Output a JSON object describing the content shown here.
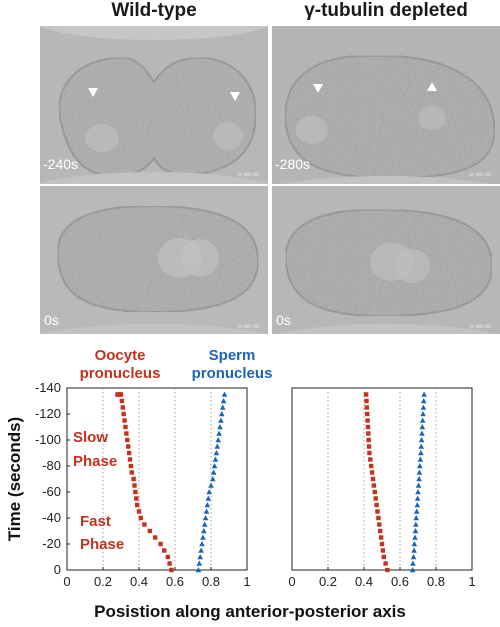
{
  "figure": {
    "column_titles": [
      "Wild-type",
      "γ-tubulin depleted"
    ],
    "panels": [
      {
        "time_label": "-240s",
        "stamp": "0:00:00 ·"
      },
      {
        "time_label": "-280s",
        "stamp": "0:00:00 ·"
      },
      {
        "time_label": "0s",
        "stamp": "0:00:00 ·"
      },
      {
        "time_label": "0s",
        "stamp": "0:00:00 ·"
      }
    ]
  },
  "chart_data": [
    {
      "type": "scatter",
      "title": "",
      "xlabel": "Posistion along anterior-posterior axis",
      "ylabel": "Time (seconds)",
      "xlim": [
        0,
        1
      ],
      "ylim": [
        0,
        -140
      ],
      "xticks": [
        "0",
        "0.2",
        "0.4",
        "0.6",
        "0.8",
        "1"
      ],
      "yticks": [
        "0",
        "-20",
        "-40",
        "-60",
        "-80",
        "-100",
        "-120",
        "-140"
      ],
      "grid": "dotted vertical lines at 0.2, 0.4, 0.6, 0.8",
      "annotations": [
        "Slow Phase",
        "Fast Phase"
      ],
      "series": [
        {
          "name": "Oocyte pronucleus",
          "color": "#c4321f",
          "marker": "square",
          "x": [
            0.58,
            0.57,
            0.56,
            0.54,
            0.52,
            0.49,
            0.46,
            0.43,
            0.41,
            0.4,
            0.39,
            0.385,
            0.38,
            0.375,
            0.37,
            0.36,
            0.355,
            0.35,
            0.345,
            0.34,
            0.335,
            0.33,
            0.325,
            0.32,
            0.315,
            0.31,
            0.305,
            0.3,
            0.295,
            0.29,
            0.285,
            0.28
          ],
          "y": [
            0,
            -5,
            -10,
            -15,
            -20,
            -25,
            -30,
            -35,
            -40,
            -45,
            -50,
            -55,
            -60,
            -65,
            -70,
            -75,
            -80,
            -85,
            -90,
            -95,
            -100,
            -105,
            -110,
            -115,
            -120,
            -125,
            -130,
            -135,
            -135,
            -135,
            -135,
            -135
          ]
        },
        {
          "name": "Sperm pronucleus",
          "color": "#1e64b5",
          "marker": "triangle",
          "x": [
            0.73,
            0.735,
            0.74,
            0.745,
            0.75,
            0.755,
            0.76,
            0.765,
            0.77,
            0.775,
            0.78,
            0.785,
            0.79,
            0.8,
            0.81,
            0.815,
            0.82,
            0.825,
            0.83,
            0.835,
            0.84,
            0.845,
            0.85,
            0.855,
            0.86,
            0.865,
            0.87,
            0.875
          ],
          "y": [
            0,
            -5,
            -10,
            -15,
            -20,
            -25,
            -30,
            -35,
            -40,
            -45,
            -50,
            -55,
            -60,
            -65,
            -70,
            -75,
            -80,
            -85,
            -90,
            -95,
            -100,
            -105,
            -110,
            -115,
            -120,
            -125,
            -130,
            -135
          ]
        }
      ]
    },
    {
      "type": "scatter",
      "title": "",
      "xlim": [
        0,
        1
      ],
      "ylim": [
        0,
        -140
      ],
      "xticks": [
        "0",
        "0.2",
        "0.4",
        "0.6",
        "0.8",
        "1"
      ],
      "grid": "dotted vertical lines at 0.2, 0.4, 0.6, 0.8",
      "series": [
        {
          "name": "Oocyte pronucleus",
          "color": "#c4321f",
          "marker": "square",
          "x": [
            0.53,
            0.52,
            0.51,
            0.505,
            0.5,
            0.495,
            0.49,
            0.485,
            0.48,
            0.475,
            0.47,
            0.465,
            0.46,
            0.455,
            0.45,
            0.445,
            0.44,
            0.435,
            0.43,
            0.428,
            0.426,
            0.424,
            0.422,
            0.42,
            0.418,
            0.416,
            0.414,
            0.412
          ],
          "y": [
            0,
            -5,
            -10,
            -15,
            -20,
            -25,
            -30,
            -35,
            -40,
            -45,
            -50,
            -55,
            -60,
            -65,
            -70,
            -75,
            -80,
            -85,
            -90,
            -95,
            -100,
            -105,
            -110,
            -115,
            -120,
            -125,
            -130,
            -135
          ]
        },
        {
          "name": "Sperm pronucleus",
          "color": "#1e64b5",
          "marker": "triangle",
          "x": [
            0.67,
            0.672,
            0.675,
            0.678,
            0.68,
            0.683,
            0.686,
            0.688,
            0.69,
            0.693,
            0.696,
            0.698,
            0.7,
            0.703,
            0.706,
            0.708,
            0.71,
            0.713,
            0.716,
            0.718,
            0.72,
            0.722,
            0.724,
            0.726,
            0.728,
            0.73,
            0.732,
            0.734
          ],
          "y": [
            0,
            -5,
            -10,
            -15,
            -20,
            -25,
            -30,
            -35,
            -40,
            -45,
            -50,
            -55,
            -60,
            -65,
            -70,
            -75,
            -80,
            -85,
            -90,
            -95,
            -100,
            -105,
            -110,
            -115,
            -120,
            -125,
            -130,
            -135
          ]
        }
      ]
    }
  ]
}
